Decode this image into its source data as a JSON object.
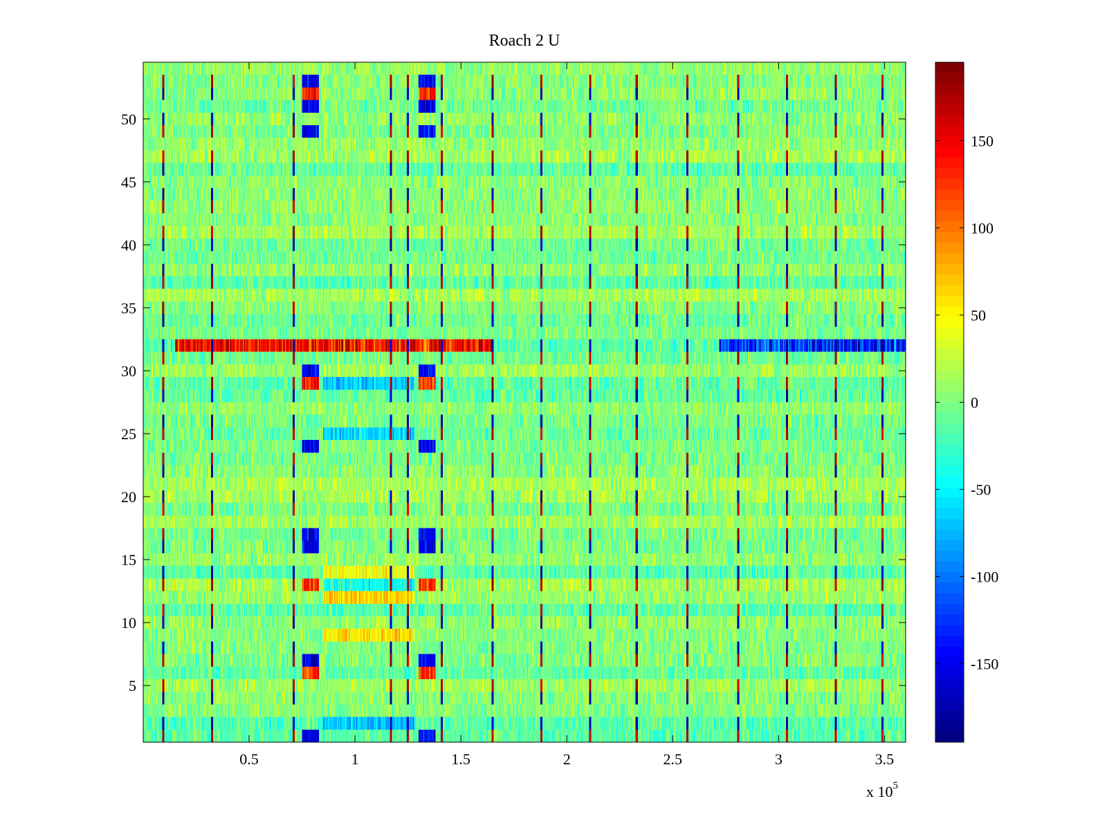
{
  "chart_data": {
    "type": "heatmap",
    "title": "Roach 2 U",
    "xlabel": "",
    "ylabel": "",
    "x_exponent_label": "x 10",
    "x_exponent_power": "5",
    "xlim": [
      0,
      360000
    ],
    "ylim": [
      0.5,
      54.5
    ],
    "rows": 54,
    "xticks": [
      {
        "value": 50000,
        "label": "0.5"
      },
      {
        "value": 100000,
        "label": "1"
      },
      {
        "value": 150000,
        "label": "1.5"
      },
      {
        "value": 200000,
        "label": "2"
      },
      {
        "value": 250000,
        "label": "2.5"
      },
      {
        "value": 300000,
        "label": "3"
      },
      {
        "value": 350000,
        "label": "3.5"
      }
    ],
    "yticks": [
      {
        "value": 5,
        "label": "5"
      },
      {
        "value": 10,
        "label": "10"
      },
      {
        "value": 15,
        "label": "15"
      },
      {
        "value": 20,
        "label": "20"
      },
      {
        "value": 25,
        "label": "25"
      },
      {
        "value": 30,
        "label": "30"
      },
      {
        "value": 35,
        "label": "35"
      },
      {
        "value": 40,
        "label": "40"
      },
      {
        "value": 45,
        "label": "45"
      },
      {
        "value": 50,
        "label": "50"
      }
    ],
    "colorbar": {
      "colormap": "jet",
      "clim": [
        -195,
        195
      ],
      "ticks": [
        {
          "value": 150,
          "label": "150"
        },
        {
          "value": 100,
          "label": "100"
        },
        {
          "value": 50,
          "label": "50"
        },
        {
          "value": 0,
          "label": "0"
        },
        {
          "value": -50,
          "label": "-50"
        },
        {
          "value": -100,
          "label": "-100"
        },
        {
          "value": -150,
          "label": "-150"
        }
      ]
    },
    "features": {
      "background_noise_amplitude": 30,
      "row_32_hot_band": {
        "row": 32,
        "x_range": [
          15000,
          165000
        ],
        "value": 140
      },
      "row_32_cold_band": {
        "row": 32,
        "x_range": [
          272000,
          360000
        ],
        "value": -130
      },
      "cold_blocks_x": [
        [
          75000,
          83000
        ],
        [
          130000,
          138000
        ]
      ],
      "cold_block_rows": [
        1,
        7,
        16,
        17,
        24,
        30,
        49,
        51,
        53
      ],
      "hot_block_rows": [
        6,
        13,
        29,
        52
      ],
      "periodic_spike_x": [
        9500,
        32500,
        71000,
        117000,
        125000,
        141000,
        165000,
        188000,
        211000,
        233000,
        257000,
        281000,
        304000,
        327000,
        349000
      ]
    }
  }
}
